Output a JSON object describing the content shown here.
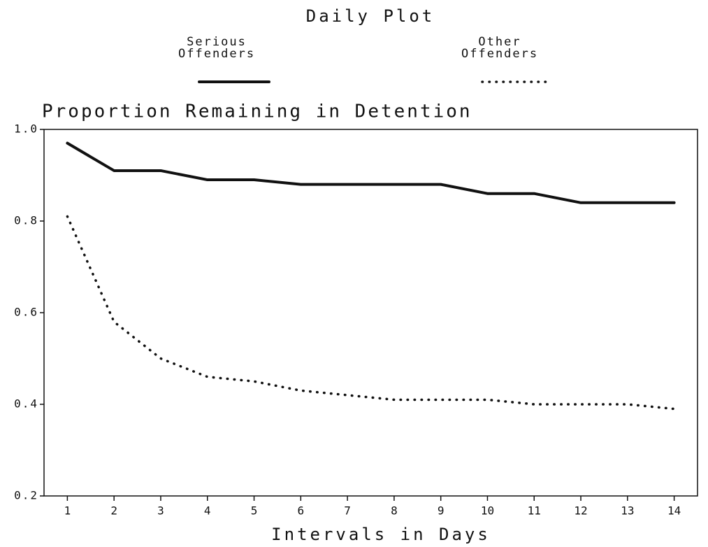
{
  "chart_data": {
    "type": "line",
    "title": "Daily Plot",
    "y_label": "Proportion Remaining in Detention",
    "x_label": "Intervals in Days",
    "x": [
      1,
      2,
      3,
      4,
      5,
      6,
      7,
      8,
      9,
      10,
      11,
      12,
      13,
      14
    ],
    "series": [
      {
        "name": "Serious Offenders",
        "color": "#111111",
        "style": "solid",
        "values": [
          0.97,
          0.91,
          0.91,
          0.89,
          0.89,
          0.88,
          0.88,
          0.88,
          0.88,
          0.86,
          0.86,
          0.84,
          0.84,
          0.84
        ]
      },
      {
        "name": "Other Offenders",
        "color": "#111111",
        "style": "dotted",
        "values": [
          0.81,
          0.58,
          0.5,
          0.46,
          0.45,
          0.43,
          0.42,
          0.41,
          0.41,
          0.41,
          0.4,
          0.4,
          0.4,
          0.39
        ]
      }
    ],
    "xlim": [
      0.5,
      14.5
    ],
    "xticks": [
      1,
      2,
      3,
      4,
      5,
      6,
      7,
      8,
      9,
      10,
      11,
      12,
      13,
      14
    ],
    "ylim": [
      0.2,
      1
    ],
    "yticks": [
      0.2,
      0.4,
      0.6,
      0.8,
      {
        "value": 1,
        "label": "1.0"
      }
    ],
    "grid": false
  }
}
